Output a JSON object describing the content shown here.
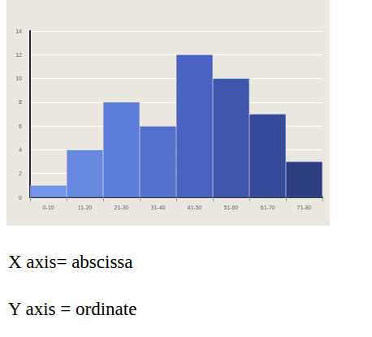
{
  "chart_data": {
    "type": "bar",
    "categories": [
      "0-10",
      "11-20",
      "21-30",
      "31-40",
      "41-50",
      "51-60",
      "61-70",
      "71-80"
    ],
    "values": [
      1,
      4,
      8,
      6,
      12,
      10,
      7,
      3
    ],
    "colors": [
      "#7293e6",
      "#6887de",
      "#5e7dd6",
      "#5470cb",
      "#4a63c0",
      "#4056ad",
      "#364a98",
      "#2d3e82"
    ],
    "ylim": [
      0,
      14
    ],
    "yticks": [
      0,
      2,
      4,
      6,
      8,
      10,
      12,
      14
    ],
    "grid": true
  },
  "text": [
    "X axis= abscissa",
    "Y axis = ordinate"
  ]
}
